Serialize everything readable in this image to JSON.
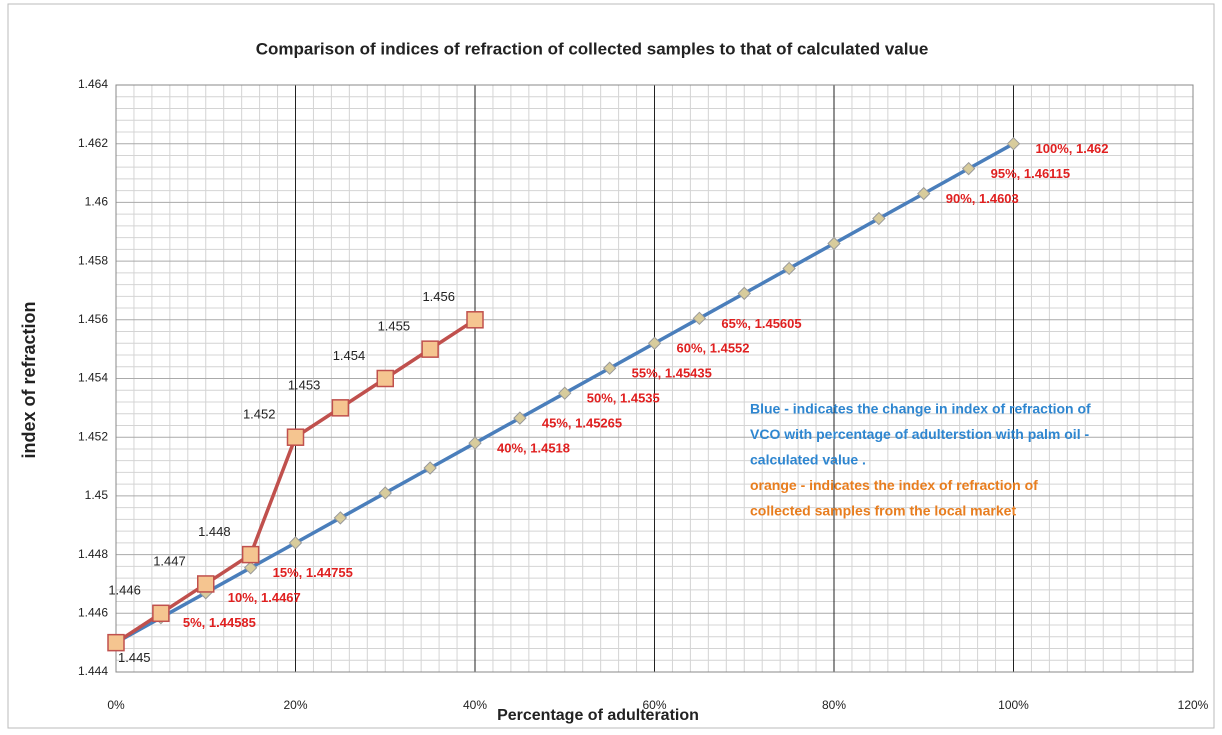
{
  "chart_data": {
    "type": "line",
    "title": "Comparison of indices of refraction of collected samples to that of calculated value",
    "x_label": "Percentage of adulteration",
    "y_label": "index of refraction",
    "xlim": [
      0,
      120
    ],
    "xticks": [
      {
        "value": 0,
        "label": "0%"
      },
      {
        "value": 20,
        "label": "20%"
      },
      {
        "value": 40,
        "label": "40%"
      },
      {
        "value": 60,
        "label": "60%"
      },
      {
        "value": 80,
        "label": "80%"
      },
      {
        "value": 100,
        "label": "100%"
      },
      {
        "value": 120,
        "label": "120%"
      }
    ],
    "ylim": [
      1.444,
      1.464
    ],
    "yticks": [
      1.444,
      1.446,
      1.448,
      1.45,
      1.452,
      1.454,
      1.456,
      1.458,
      1.46,
      1.462,
      1.464
    ],
    "grid": true,
    "series": [
      {
        "color": "#4a7ebb",
        "marker": "diamond",
        "marker_color": "#d8cc9c",
        "x": [
          0,
          5,
          10,
          15,
          20,
          25,
          30,
          35,
          40,
          45,
          50,
          55,
          60,
          65,
          70,
          75,
          80,
          85,
          90,
          95,
          100
        ],
        "values": [
          1.445,
          1.44585,
          1.4467,
          1.44755,
          1.4484,
          1.44925,
          1.4501,
          1.45095,
          1.4518,
          1.45265,
          1.4535,
          1.45435,
          1.4552,
          1.45605,
          1.4569,
          1.45775,
          1.4586,
          1.45945,
          1.4603,
          1.46115,
          1.462
        ],
        "value_labels": [
          null,
          "5%, 1.44585",
          "10%, 1.4467",
          "15%, 1.44755",
          null,
          null,
          null,
          null,
          "40%, 1.4518",
          "45%, 1.45265",
          "50%, 1.4535",
          "55%, 1.45435",
          "60%, 1.4552",
          "65%, 1.45605",
          null,
          null,
          null,
          null,
          "90%, 1.4603",
          "95%, 1.46115",
          "100%, 1.462"
        ]
      },
      {
        "color": "#c0504d",
        "marker": "square",
        "marker_color": "#f5c590",
        "x": [
          0,
          5,
          10,
          15,
          20,
          25,
          30,
          35,
          40
        ],
        "values": [
          1.445,
          1.446,
          1.447,
          1.448,
          1.452,
          1.453,
          1.454,
          1.455,
          1.456
        ]
      }
    ],
    "annotations": [
      {
        "color": "#2e86d0",
        "lines": [
          "Blue - indicates the change in index of refraction of",
          "VCO with percentage of adulterstion with palm oil -",
          "calculated  value ."
        ]
      },
      {
        "color": "#e87d1e",
        "lines": [
          "orange - indicates the index of refraction of",
          "collected samples from the local market"
        ]
      }
    ]
  }
}
